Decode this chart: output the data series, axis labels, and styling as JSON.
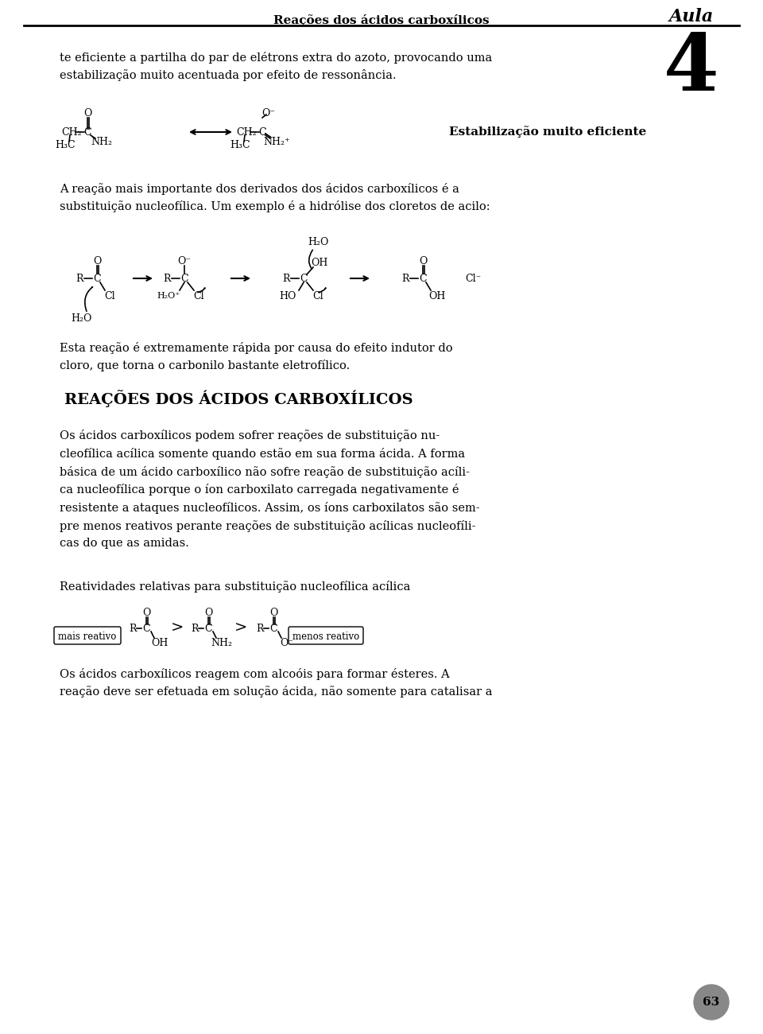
{
  "page_width": 9.6,
  "page_height": 13.0,
  "bg_color": "#ffffff",
  "header_text": "Reações dos ácidos carboxílicos",
  "header_right": "Aula",
  "chapter_number": "4",
  "page_number": "63",
  "body_text_1": "te eficiente a partilha do par de elétrons extra do azoto, provocando uma\nestabilização muito acentuada por efeito de ressonância.",
  "body_text_2": "A reação mais importante dos derivados dos ácidos carboxílicos é a\nsubstituição nucleofílica. Um exemplo é a hidrólise dos cloretos de acilo:",
  "body_text_3": "Esta reação é extremamente rápida por causa do efeito indutor do\ncloro, que torna o carbonilo bastante eletrofílico.",
  "section_title": "REAÇÕES DOS ÁCIDOS CARBOXÍLICOS",
  "body_text_4": "Os ácidos carboxílicos podem sofrer reações de substituição nu-\ncleofílica acílica somente quando estão em sua forma ácida. A forma\nbásica de um ácido carboxílico não sofre reação de substituição acíli-\nca nucleofílica porque o íon carboxilato carregada negativamente é\nresistente a ataques nucleofílicos. Assim, os íons carboxilatos são sem-\npre menos reativos perante reações de substituição acílicas nucleofíli-\ncas do que as amidas.",
  "reactivity_label": "Reatividades relativas para substituição nucleofílica acílica",
  "reactivity_labels_left": "mais reativo",
  "reactivity_labels_right": "menos reativo",
  "body_text_5": "Os ácidos carboxílicos reagem com alcoóis para formar ésteres. A\nreação deve ser efetuada em solução ácida, não somente para catalisar a"
}
